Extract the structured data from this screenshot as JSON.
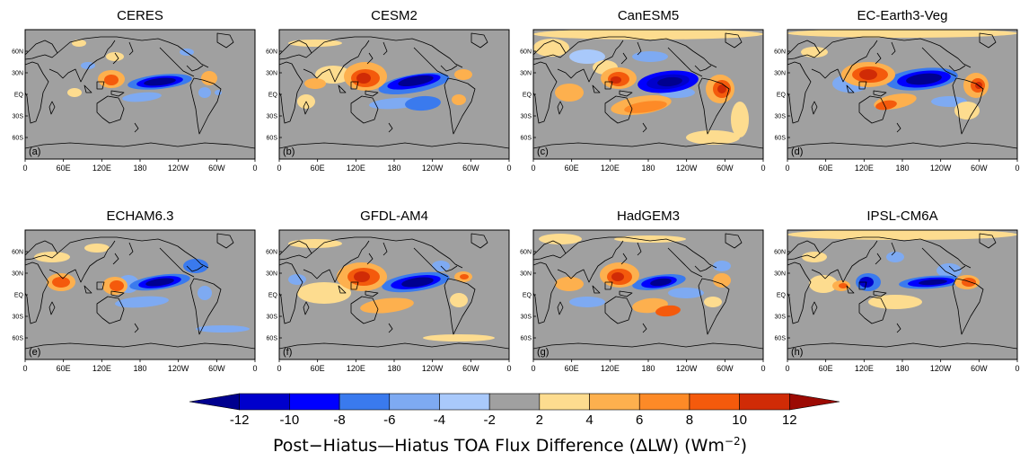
{
  "panels": [
    {
      "title": "CERES",
      "label": "(a)"
    },
    {
      "title": "CESM2",
      "label": "(b)"
    },
    {
      "title": "CanESM5",
      "label": "(c)"
    },
    {
      "title": "EC-Earth3-Veg",
      "label": "(d)"
    },
    {
      "title": "ECHAM6.3",
      "label": "(e)"
    },
    {
      "title": "GFDL-AM4",
      "label": "(f)"
    },
    {
      "title": "HadGEM3",
      "label": "(g)"
    },
    {
      "title": "IPSL-CM6A",
      "label": "(h)"
    }
  ],
  "x_ticks": [
    "0",
    "60E",
    "120E",
    "180",
    "120W",
    "60W",
    "0"
  ],
  "y_ticks": [
    "60N",
    "30N",
    "EQ",
    "30S",
    "60S"
  ],
  "colorbar": {
    "levels": [
      "-12",
      "-10",
      "-8",
      "-6",
      "-4",
      "-2",
      "2",
      "4",
      "6",
      "8",
      "10",
      "12"
    ],
    "colors": [
      "#00008f",
      "#0000cc",
      "#0000ff",
      "#3a7aee",
      "#7eaaf2",
      "#a9c9fb",
      "#a0a0a0",
      "#fddc8f",
      "#fdb04e",
      "#fd8a27",
      "#f45a0c",
      "#d02b06",
      "#9c0a03"
    ],
    "title_prefix": "Post−Hiatus—Hiatus TOA Flux Difference (ΔLW) (Wm",
    "title_exponent": "−2",
    "title_suffix": ")"
  }
}
